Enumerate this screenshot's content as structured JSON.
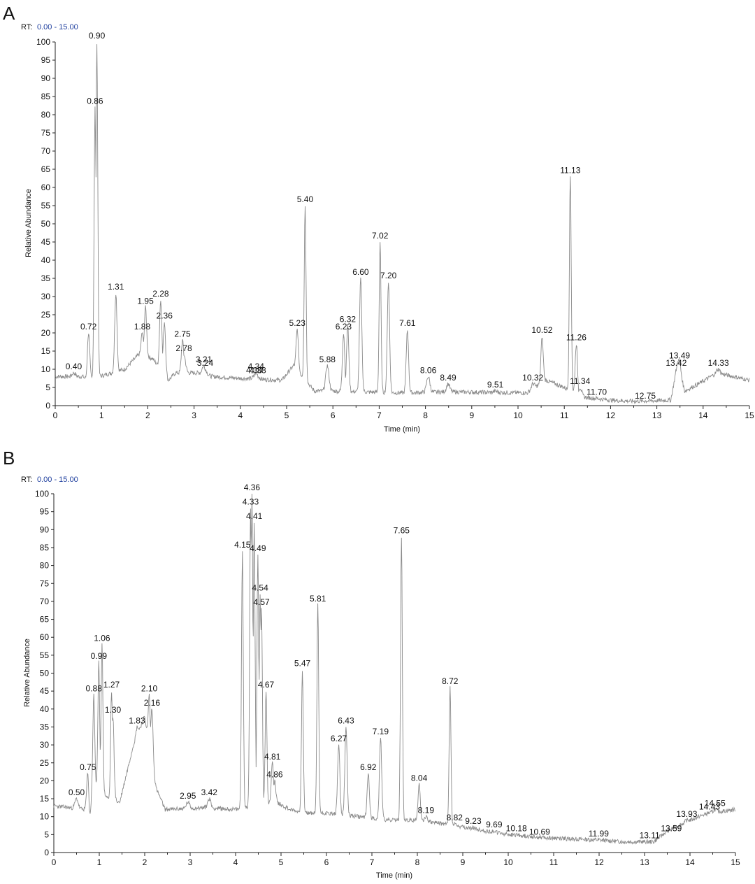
{
  "chart_data": [
    {
      "type": "line",
      "panel_label": "A",
      "range_prefix": "RT:",
      "range_value": "0.00 - 15.00",
      "xlabel": "Time (min)",
      "ylabel": "Relative Abundance",
      "xlim": [
        0,
        15
      ],
      "ylim": [
        0,
        100
      ],
      "x_ticks": [
        0,
        1,
        2,
        3,
        4,
        5,
        6,
        7,
        8,
        9,
        10,
        11,
        12,
        13,
        14,
        15
      ],
      "y_ticks": [
        0,
        5,
        10,
        15,
        20,
        25,
        30,
        35,
        40,
        45,
        50,
        55,
        60,
        65,
        70,
        75,
        80,
        85,
        90,
        95,
        100
      ],
      "baseline": [
        [
          0,
          8
        ],
        [
          0.6,
          8
        ],
        [
          0.68,
          7
        ],
        [
          1.5,
          10
        ],
        [
          1.8,
          14
        ],
        [
          2.1,
          13
        ],
        [
          2.45,
          7
        ],
        [
          2.6,
          9
        ],
        [
          3.1,
          9
        ],
        [
          3.4,
          8
        ],
        [
          4.0,
          7.5
        ],
        [
          4.9,
          7
        ],
        [
          5.15,
          11
        ],
        [
          5.6,
          4
        ],
        [
          6.0,
          4
        ],
        [
          7.5,
          3.5
        ],
        [
          8.5,
          3.8
        ],
        [
          10.2,
          3.5
        ],
        [
          10.6,
          7
        ],
        [
          11.0,
          5
        ],
        [
          11.3,
          2.5
        ],
        [
          12.0,
          1.5
        ],
        [
          12.5,
          1.2
        ],
        [
          13.3,
          1.5
        ],
        [
          13.45,
          11
        ],
        [
          13.6,
          4
        ],
        [
          13.9,
          6
        ],
        [
          14.3,
          9
        ],
        [
          15,
          7
        ]
      ],
      "peaks": [
        {
          "label": "0.40",
          "x": 0.4,
          "y": 9
        },
        {
          "label": "0.72",
          "x": 0.72,
          "y": 20
        },
        {
          "label": "0.86",
          "x": 0.86,
          "y": 82
        },
        {
          "label": "0.90",
          "x": 0.9,
          "y": 100
        },
        {
          "label": "1.31",
          "x": 1.31,
          "y": 31
        },
        {
          "label": "1.88",
          "x": 1.88,
          "y": 20
        },
        {
          "label": "1.95",
          "x": 1.95,
          "y": 27
        },
        {
          "label": "2.28",
          "x": 2.28,
          "y": 29
        },
        {
          "label": "2.36",
          "x": 2.36,
          "y": 23
        },
        {
          "label": "2.75",
          "x": 2.75,
          "y": 18
        },
        {
          "label": "2.78",
          "x": 2.78,
          "y": 14
        },
        {
          "label": "3.21",
          "x": 3.21,
          "y": 11
        },
        {
          "label": "3.24",
          "x": 3.24,
          "y": 10
        },
        {
          "label": "4.30",
          "x": 4.3,
          "y": 8
        },
        {
          "label": "4.34",
          "x": 4.34,
          "y": 9
        },
        {
          "label": "4.38",
          "x": 4.38,
          "y": 8
        },
        {
          "label": "5.23",
          "x": 5.23,
          "y": 21
        },
        {
          "label": "5.40",
          "x": 5.4,
          "y": 55
        },
        {
          "label": "5.88",
          "x": 5.88,
          "y": 11
        },
        {
          "label": "6.23",
          "x": 6.23,
          "y": 20
        },
        {
          "label": "6.32",
          "x": 6.32,
          "y": 22
        },
        {
          "label": "6.60",
          "x": 6.6,
          "y": 35
        },
        {
          "label": "7.02",
          "x": 7.02,
          "y": 45
        },
        {
          "label": "7.20",
          "x": 7.2,
          "y": 34
        },
        {
          "label": "7.61",
          "x": 7.61,
          "y": 21
        },
        {
          "label": "8.06",
          "x": 8.06,
          "y": 8
        },
        {
          "label": "8.49",
          "x": 8.49,
          "y": 6
        },
        {
          "label": "9.51",
          "x": 9.51,
          "y": 4
        },
        {
          "label": "10.32",
          "x": 10.32,
          "y": 6
        },
        {
          "label": "10.52",
          "x": 10.52,
          "y": 19
        },
        {
          "label": "11.13",
          "x": 11.13,
          "y": 63
        },
        {
          "label": "11.26",
          "x": 11.26,
          "y": 17
        },
        {
          "label": "11.34",
          "x": 11.34,
          "y": 5
        },
        {
          "label": "11.70",
          "x": 11.7,
          "y": 2
        },
        {
          "label": "12.75",
          "x": 12.75,
          "y": 1
        },
        {
          "label": "13.42",
          "x": 13.42,
          "y": 10
        },
        {
          "label": "13.49",
          "x": 13.49,
          "y": 12
        },
        {
          "label": "14.33",
          "x": 14.33,
          "y": 10
        }
      ]
    },
    {
      "type": "line",
      "panel_label": "B",
      "range_prefix": "RT:",
      "range_value": "0.00 - 15.00",
      "xlabel": "Time (min)",
      "ylabel": "Relative Abundance",
      "xlim": [
        0,
        15
      ],
      "ylim": [
        0,
        100
      ],
      "x_ticks": [
        0,
        1,
        2,
        3,
        4,
        5,
        6,
        7,
        8,
        9,
        10,
        11,
        12,
        13,
        14,
        15
      ],
      "y_ticks": [
        0,
        5,
        10,
        15,
        20,
        25,
        30,
        35,
        40,
        45,
        50,
        55,
        60,
        65,
        70,
        75,
        80,
        85,
        90,
        95,
        100
      ],
      "baseline": [
        [
          0,
          13
        ],
        [
          0.7,
          12
        ],
        [
          0.78,
          5
        ],
        [
          0.85,
          20
        ],
        [
          1.2,
          15
        ],
        [
          1.45,
          14
        ],
        [
          1.6,
          22
        ],
        [
          1.75,
          30
        ],
        [
          2.0,
          38
        ],
        [
          2.25,
          18
        ],
        [
          2.45,
          12
        ],
        [
          3.3,
          12.5
        ],
        [
          4.0,
          12
        ],
        [
          4.05,
          12
        ],
        [
          4.9,
          14
        ],
        [
          5.2,
          12
        ],
        [
          5.5,
          11
        ],
        [
          6.0,
          11
        ],
        [
          7.4,
          9
        ],
        [
          8.0,
          9
        ],
        [
          8.6,
          8
        ],
        [
          9.0,
          7
        ],
        [
          10.0,
          5
        ],
        [
          11.0,
          4
        ],
        [
          12.0,
          3.5
        ],
        [
          12.5,
          3
        ],
        [
          13.2,
          3
        ],
        [
          13.5,
          6
        ],
        [
          14.0,
          9
        ],
        [
          14.4,
          11
        ],
        [
          15,
          12
        ]
      ],
      "peaks": [
        {
          "label": "0.50",
          "x": 0.5,
          "y": 15
        },
        {
          "label": "0.75",
          "x": 0.75,
          "y": 22
        },
        {
          "label": "0.88",
          "x": 0.88,
          "y": 44
        },
        {
          "label": "0.99",
          "x": 0.99,
          "y": 53
        },
        {
          "label": "1.06",
          "x": 1.06,
          "y": 58
        },
        {
          "label": "1.27",
          "x": 1.27,
          "y": 45
        },
        {
          "label": "1.30",
          "x": 1.3,
          "y": 38
        },
        {
          "label": "1.83",
          "x": 1.83,
          "y": 35
        },
        {
          "label": "2.10",
          "x": 2.1,
          "y": 44
        },
        {
          "label": "2.16",
          "x": 2.16,
          "y": 40
        },
        {
          "label": "2.95",
          "x": 2.95,
          "y": 14
        },
        {
          "label": "3.42",
          "x": 3.42,
          "y": 15
        },
        {
          "label": "4.15",
          "x": 4.15,
          "y": 84
        },
        {
          "label": "4.33",
          "x": 4.33,
          "y": 96
        },
        {
          "label": "4.36",
          "x": 4.36,
          "y": 100
        },
        {
          "label": "4.41",
          "x": 4.41,
          "y": 92
        },
        {
          "label": "4.49",
          "x": 4.49,
          "y": 83
        },
        {
          "label": "4.54",
          "x": 4.54,
          "y": 72
        },
        {
          "label": "4.57",
          "x": 4.57,
          "y": 68
        },
        {
          "label": "4.67",
          "x": 4.67,
          "y": 45
        },
        {
          "label": "4.81",
          "x": 4.81,
          "y": 25
        },
        {
          "label": "4.86",
          "x": 4.86,
          "y": 20
        },
        {
          "label": "5.47",
          "x": 5.47,
          "y": 51
        },
        {
          "label": "5.81",
          "x": 5.81,
          "y": 69
        },
        {
          "label": "6.27",
          "x": 6.27,
          "y": 30
        },
        {
          "label": "6.43",
          "x": 6.43,
          "y": 35
        },
        {
          "label": "6.92",
          "x": 6.92,
          "y": 22
        },
        {
          "label": "7.19",
          "x": 7.19,
          "y": 32
        },
        {
          "label": "7.65",
          "x": 7.65,
          "y": 88
        },
        {
          "label": "8.04",
          "x": 8.04,
          "y": 19
        },
        {
          "label": "8.19",
          "x": 8.19,
          "y": 10
        },
        {
          "label": "8.72",
          "x": 8.72,
          "y": 46
        },
        {
          "label": "8.82",
          "x": 8.82,
          "y": 8
        },
        {
          "label": "9.23",
          "x": 9.23,
          "y": 7
        },
        {
          "label": "9.69",
          "x": 9.69,
          "y": 6
        },
        {
          "label": "10.18",
          "x": 10.18,
          "y": 5
        },
        {
          "label": "10.69",
          "x": 10.69,
          "y": 4
        },
        {
          "label": "11.99",
          "x": 11.99,
          "y": 3.5
        },
        {
          "label": "13.11",
          "x": 13.11,
          "y": 3
        },
        {
          "label": "13.59",
          "x": 13.59,
          "y": 5
        },
        {
          "label": "13.93",
          "x": 13.93,
          "y": 9
        },
        {
          "label": "14.43",
          "x": 14.43,
          "y": 11
        },
        {
          "label": "14.55",
          "x": 14.55,
          "y": 12
        }
      ]
    }
  ]
}
